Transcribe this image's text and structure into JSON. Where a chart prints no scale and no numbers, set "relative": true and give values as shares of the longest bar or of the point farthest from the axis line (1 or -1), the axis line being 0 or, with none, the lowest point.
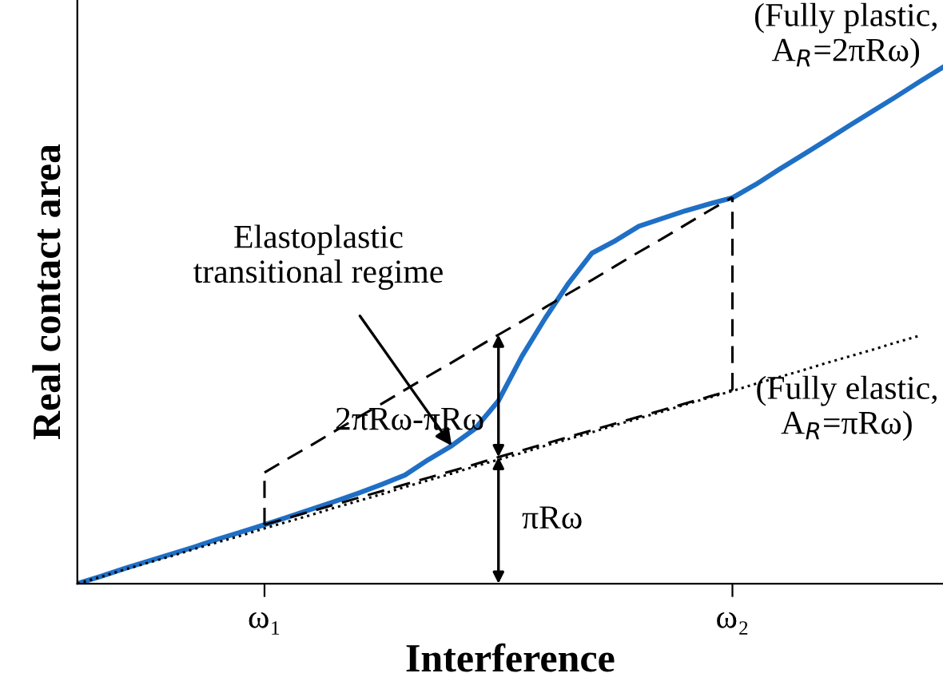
{
  "chart_data": {
    "type": "line",
    "relative": true,
    "xlabel": "Interference",
    "ylabel": "Real contact area",
    "categories": [
      null,
      null,
      null,
      null,
      null,
      null,
      null,
      null,
      "ω₁",
      null,
      null,
      null,
      null,
      null,
      null,
      null,
      null,
      null,
      null,
      null,
      null,
      null,
      null,
      null,
      null,
      null,
      null,
      null,
      "ω₂",
      null,
      null,
      null,
      null,
      null,
      null,
      null,
      null,
      null
    ],
    "grid": false,
    "legend": false,
    "marker": "none",
    "series": [
      {
        "color": "#1f6fc5",
        "line_style": "solid",
        "values": [
          0,
          0.014,
          0.029,
          0.043,
          0.057,
          0.071,
          0.086,
          0.1,
          0.114,
          0.129,
          0.144,
          0.159,
          0.175,
          0.192,
          0.21,
          0.24,
          0.267,
          0.3,
          0.354,
          0.44,
          0.514,
          0.582,
          0.64,
          0.664,
          0.692,
          0.707,
          0.722,
          0.735,
          0.747,
          0.773,
          0.802,
          0.83,
          0.858,
          0.887,
          0.915,
          0.943,
          0.972,
          1
        ]
      },
      {
        "color": "#000000",
        "line_style": "dotted",
        "values": [
          0,
          0.013,
          0.027,
          0.04,
          0.053,
          0.067,
          0.08,
          0.093,
          0.107,
          0.12,
          0.133,
          0.147,
          0.16,
          0.173,
          0.187,
          0.2,
          0.213,
          0.227,
          0.24,
          0.253,
          0.267,
          0.28,
          0.293,
          0.307,
          0.32,
          0.333,
          0.347,
          0.36,
          0.373,
          0.387,
          0.4,
          0.413,
          0.427,
          0.44,
          0.453,
          0.467,
          0.48,
          null
        ]
      },
      {
        "color": "#000000",
        "line_style": "dashed",
        "values": [
          null,
          null,
          null,
          null,
          null,
          null,
          null,
          null,
          0.114,
          0.127,
          0.14,
          0.153,
          0.166,
          0.179,
          0.192,
          0.205,
          0.218,
          0.231,
          0.245,
          0.258,
          0.271,
          0.284,
          0.297,
          0.31,
          0.323,
          0.336,
          0.349,
          0.362,
          0.375,
          null,
          null,
          null,
          null,
          null,
          null,
          null,
          null,
          null
        ]
      },
      {
        "color": "#000000",
        "line_style": "dashed",
        "values": [
          null,
          null,
          null,
          null,
          null,
          null,
          null,
          null,
          0.215,
          0.242,
          0.268,
          0.295,
          0.322,
          0.348,
          0.375,
          0.402,
          0.428,
          0.455,
          0.482,
          0.508,
          0.535,
          0.562,
          0.588,
          0.615,
          0.642,
          0.668,
          0.695,
          0.722,
          0.748,
          null,
          null,
          null,
          null,
          null,
          null,
          null,
          null,
          null
        ]
      }
    ],
    "annotations": [
      "2πRω-πRω",
      "πRω",
      "Elastoplastic\ntransitional regime",
      "(Fully plastic,\nA$_{R}$=2πRω)",
      "(Fully elastic,\nA$_{R}$=πRω)"
    ]
  }
}
